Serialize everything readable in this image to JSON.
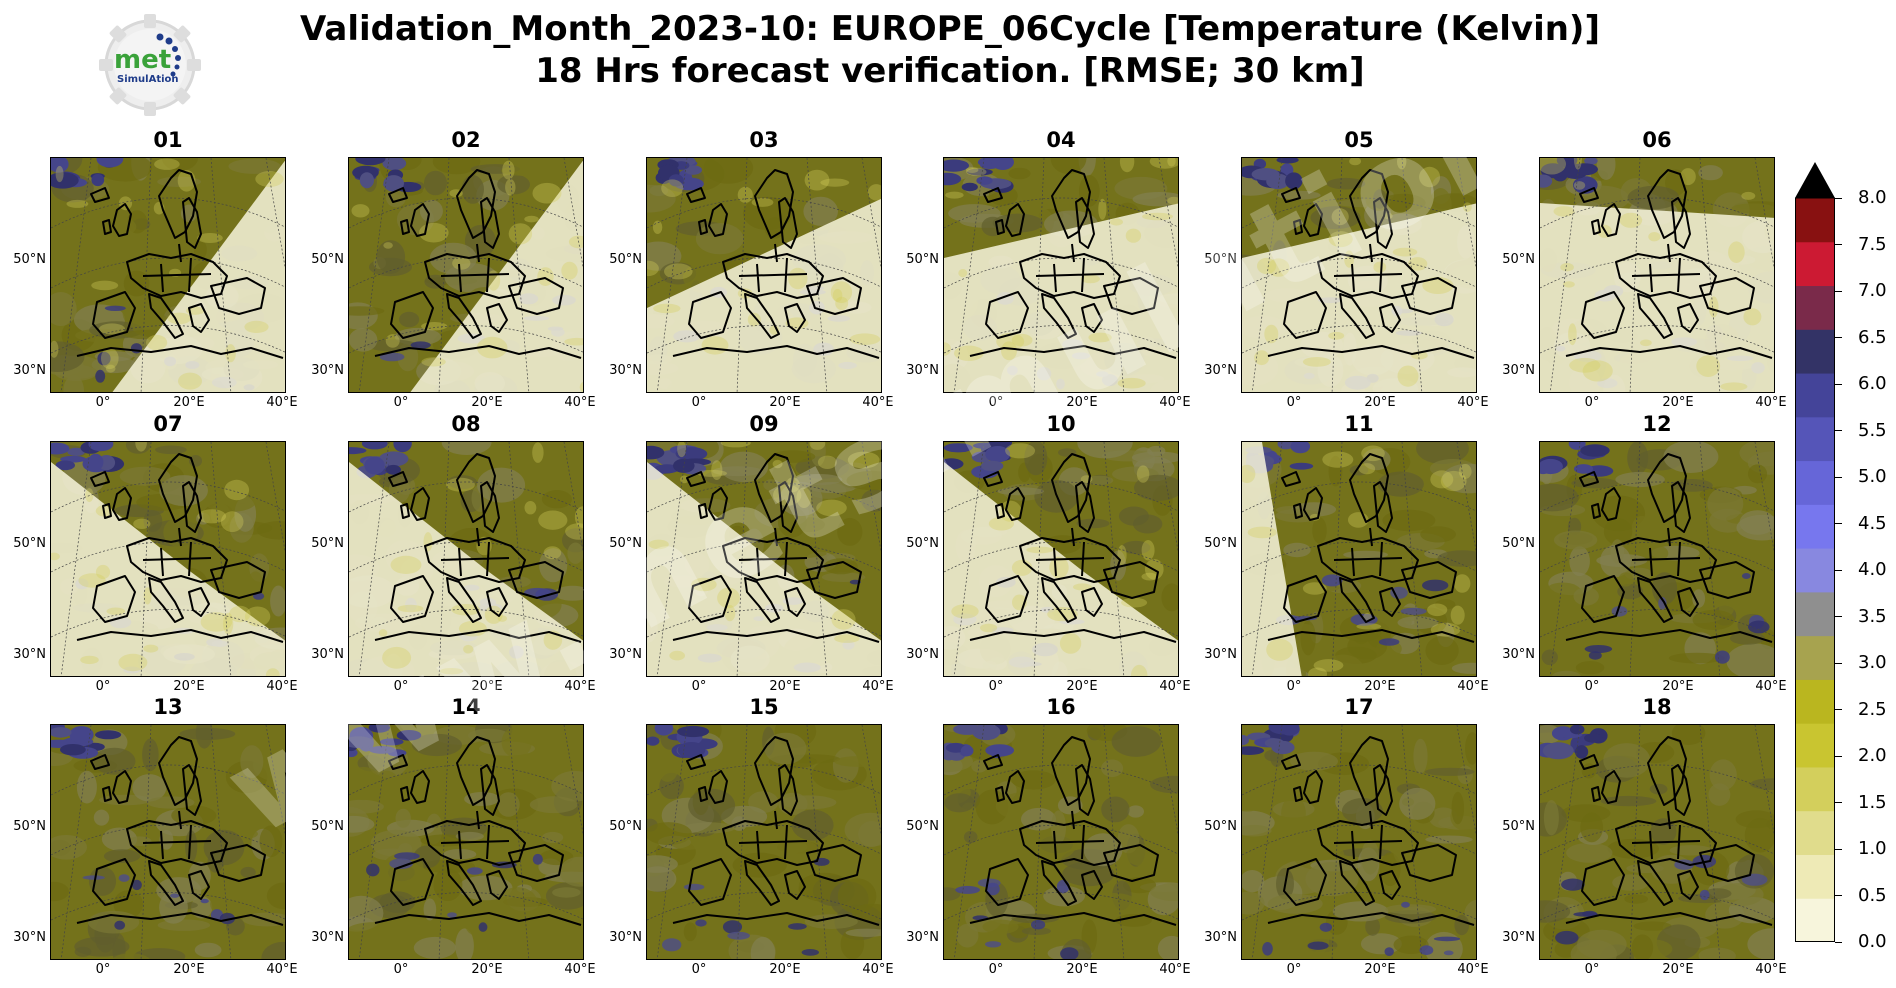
{
  "title": {
    "line1": "Validation_Month_2023-10: EUROPE_06Cycle [Temperature (Kelvin)]",
    "line2": "18 Hrs forecast verification.  [RMSE; 30 km]"
  },
  "logo": {
    "text": "met",
    "subtext": "SimulAtion"
  },
  "watermark": "www.metsimulation.com",
  "map_axes": {
    "y_ticks": [
      "50°N",
      "30°N"
    ],
    "x_ticks": [
      "0°",
      "20°E",
      "40°E"
    ]
  },
  "chart_data": {
    "type": "heatmap",
    "panels": [
      "01",
      "02",
      "03",
      "04",
      "05",
      "06",
      "07",
      "08",
      "09",
      "10",
      "11",
      "12",
      "13",
      "14",
      "15",
      "16",
      "17",
      "18"
    ],
    "daylight_region": [
      "east",
      "east",
      "southeast",
      "south",
      "south",
      "southwest",
      "west",
      "west",
      "west",
      "west",
      "west-edge",
      "none",
      "none",
      "none",
      "none",
      "none",
      "none",
      "none"
    ],
    "colorbar": {
      "ticks": [
        "0.0",
        "0.5",
        "1.0",
        "1.5",
        "2.0",
        "2.5",
        "3.0",
        "3.5",
        "4.0",
        "4.5",
        "5.0",
        "5.5",
        "6.0",
        "6.5",
        "7.0",
        "7.5",
        "8.0"
      ],
      "range": [
        0,
        8
      ],
      "extend": "max",
      "colors": [
        "#f7f5dc",
        "#eeeab6",
        "#e0dc8c",
        "#d3cf5c",
        "#c9c530",
        "#bab61f",
        "#a7a34f",
        "#8f8f8f",
        "#8888e0",
        "#7777ee",
        "#6666d8",
        "#5555b8",
        "#444499",
        "#333366",
        "#7a2a4a",
        "#cc1a33",
        "#881111"
      ],
      "over_color": "#000000"
    }
  }
}
